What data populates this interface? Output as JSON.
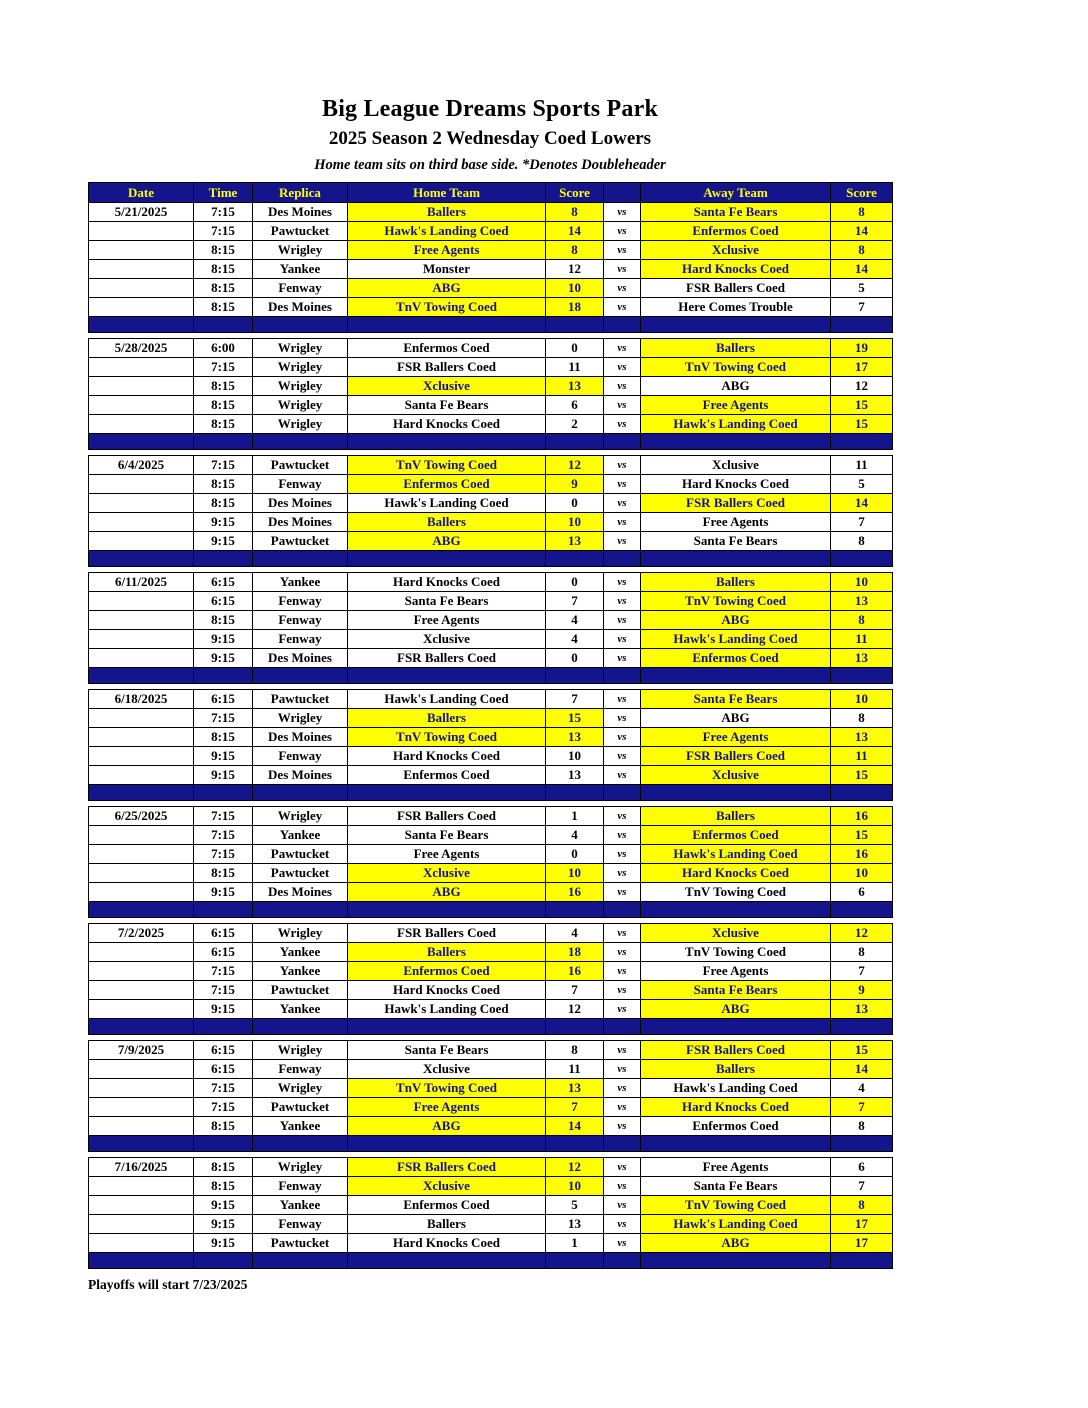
{
  "title": "Big League Dreams Sports Park",
  "subtitle": "2025 Season 2 Wednesday Coed Lowers",
  "note": "Home team sits on third base side.  *Denotes Doubleheader",
  "footer": "Playoffs will start 7/23/2025",
  "vs_label": "vs",
  "columns": [
    "Date",
    "Time",
    "Replica",
    "Home Team",
    "Score",
    "",
    "Away Team",
    "Score"
  ],
  "colors": {
    "header_bg": "#14148C",
    "header_text": "#FFFF00",
    "highlight_bg": "#FFFF00",
    "highlight_text": "#14148C",
    "separator_bg": "#14148C"
  },
  "groups": [
    {
      "date": "5/21/2025",
      "games": [
        {
          "time": "7:15",
          "replica": "Des Moines",
          "home": "Ballers",
          "home_score": "8",
          "away": "Santa Fe Bears",
          "away_score": "8",
          "home_win": true,
          "away_win": true
        },
        {
          "time": "7:15",
          "replica": "Pawtucket",
          "home": "Hawk's Landing Coed",
          "home_score": "14",
          "away": "Enfermos Coed",
          "away_score": "14",
          "home_win": true,
          "away_win": true
        },
        {
          "time": "8:15",
          "replica": "Wrigley",
          "home": "Free Agents",
          "home_score": "8",
          "away": "Xclusive",
          "away_score": "8",
          "home_win": true,
          "away_win": true
        },
        {
          "time": "8:15",
          "replica": "Yankee",
          "home": "Monster",
          "home_score": "12",
          "away": "Hard Knocks Coed",
          "away_score": "14",
          "home_win": false,
          "away_win": true
        },
        {
          "time": "8:15",
          "replica": "Fenway",
          "home": "ABG",
          "home_score": "10",
          "away": "FSR Ballers Coed",
          "away_score": "5",
          "home_win": true,
          "away_win": false
        },
        {
          "time": "8:15",
          "replica": "Des Moines",
          "home": "TnV Towing Coed",
          "home_score": "18",
          "away": "Here Comes Trouble",
          "away_score": "7",
          "home_win": true,
          "away_win": false
        }
      ]
    },
    {
      "date": "5/28/2025",
      "games": [
        {
          "time": "6:00",
          "replica": "Wrigley",
          "home": "Enfermos Coed",
          "home_score": "0",
          "away": "Ballers",
          "away_score": "19",
          "home_win": false,
          "away_win": true
        },
        {
          "time": "7:15",
          "replica": "Wrigley",
          "home": "FSR Ballers Coed",
          "home_score": "11",
          "away": "TnV Towing Coed",
          "away_score": "17",
          "home_win": false,
          "away_win": true
        },
        {
          "time": "8:15",
          "replica": "Wrigley",
          "home": "Xclusive",
          "home_score": "13",
          "away": "ABG",
          "away_score": "12",
          "home_win": true,
          "away_win": false
        },
        {
          "time": "8:15",
          "replica": "Wrigley",
          "home": "Santa Fe Bears",
          "home_score": "6",
          "away": "Free Agents",
          "away_score": "15",
          "home_win": false,
          "away_win": true
        },
        {
          "time": "8:15",
          "replica": "Wrigley",
          "home": "Hard Knocks Coed",
          "home_score": "2",
          "away": "Hawk's Landing Coed",
          "away_score": "15",
          "home_win": false,
          "away_win": true
        }
      ]
    },
    {
      "date": "6/4/2025",
      "games": [
        {
          "time": "7:15",
          "replica": "Pawtucket",
          "home": "TnV Towing Coed",
          "home_score": "12",
          "away": "Xclusive",
          "away_score": "11",
          "home_win": true,
          "away_win": false
        },
        {
          "time": "8:15",
          "replica": "Fenway",
          "home": "Enfermos Coed",
          "home_score": "9",
          "away": "Hard Knocks Coed",
          "away_score": "5",
          "home_win": true,
          "away_win": false
        },
        {
          "time": "8:15",
          "replica": "Des Moines",
          "home": "Hawk's Landing Coed",
          "home_score": "0",
          "away": "FSR Ballers Coed",
          "away_score": "14",
          "home_win": false,
          "away_win": true
        },
        {
          "time": "9:15",
          "replica": "Des Moines",
          "home": "Ballers",
          "home_score": "10",
          "away": "Free Agents",
          "away_score": "7",
          "home_win": true,
          "away_win": false
        },
        {
          "time": "9:15",
          "replica": "Pawtucket",
          "home": "ABG",
          "home_score": "13",
          "away": "Santa Fe Bears",
          "away_score": "8",
          "home_win": true,
          "away_win": false
        }
      ]
    },
    {
      "date": "6/11/2025",
      "games": [
        {
          "time": "6:15",
          "replica": "Yankee",
          "home": "Hard Knocks Coed",
          "home_score": "0",
          "away": "Ballers",
          "away_score": "10",
          "home_win": false,
          "away_win": true
        },
        {
          "time": "6:15",
          "replica": "Fenway",
          "home": "Santa Fe Bears",
          "home_score": "7",
          "away": "TnV Towing Coed",
          "away_score": "13",
          "home_win": false,
          "away_win": true
        },
        {
          "time": "8:15",
          "replica": "Fenway",
          "home": "Free Agents",
          "home_score": "4",
          "away": "ABG",
          "away_score": "8",
          "home_win": false,
          "away_win": true
        },
        {
          "time": "9:15",
          "replica": "Fenway",
          "home": "Xclusive",
          "home_score": "4",
          "away": "Hawk's Landing Coed",
          "away_score": "11",
          "home_win": false,
          "away_win": true
        },
        {
          "time": "9:15",
          "replica": "Des Moines",
          "home": "FSR Ballers Coed",
          "home_score": "0",
          "away": "Enfermos Coed",
          "away_score": "13",
          "home_win": false,
          "away_win": true
        }
      ]
    },
    {
      "date": "6/18/2025",
      "games": [
        {
          "time": "6:15",
          "replica": "Pawtucket",
          "home": "Hawk's Landing Coed",
          "home_score": "7",
          "away": "Santa Fe Bears",
          "away_score": "10",
          "home_win": false,
          "away_win": true
        },
        {
          "time": "7:15",
          "replica": "Wrigley",
          "home": "Ballers",
          "home_score": "15",
          "away": "ABG",
          "away_score": "8",
          "home_win": true,
          "away_win": false
        },
        {
          "time": "8:15",
          "replica": "Des Moines",
          "home": "TnV Towing Coed",
          "home_score": "13",
          "away": "Free Agents",
          "away_score": "13",
          "home_win": true,
          "away_win": true
        },
        {
          "time": "9:15",
          "replica": "Fenway",
          "home": "Hard Knocks Coed",
          "home_score": "10",
          "away": "FSR Ballers Coed",
          "away_score": "11",
          "home_win": false,
          "away_win": true
        },
        {
          "time": "9:15",
          "replica": "Des Moines",
          "home": "Enfermos Coed",
          "home_score": "13",
          "away": "Xclusive",
          "away_score": "15",
          "home_win": false,
          "away_win": true
        }
      ]
    },
    {
      "date": "6/25/2025",
      "games": [
        {
          "time": "7:15",
          "replica": "Wrigley",
          "home": "FSR Ballers Coed",
          "home_score": "1",
          "away": "Ballers",
          "away_score": "16",
          "home_win": false,
          "away_win": true
        },
        {
          "time": "7:15",
          "replica": "Yankee",
          "home": "Santa Fe Bears",
          "home_score": "4",
          "away": "Enfermos Coed",
          "away_score": "15",
          "home_win": false,
          "away_win": true
        },
        {
          "time": "7:15",
          "replica": "Pawtucket",
          "home": "Free Agents",
          "home_score": "0",
          "away": "Hawk's Landing Coed",
          "away_score": "16",
          "home_win": false,
          "away_win": true
        },
        {
          "time": "8:15",
          "replica": "Pawtucket",
          "home": "Xclusive",
          "home_score": "10",
          "away": "Hard Knocks Coed",
          "away_score": "10",
          "home_win": true,
          "away_win": true
        },
        {
          "time": "9:15",
          "replica": "Des Moines",
          "home": "ABG",
          "home_score": "16",
          "away": "TnV Towing Coed",
          "away_score": "6",
          "home_win": true,
          "away_win": false
        }
      ]
    },
    {
      "date": "7/2/2025",
      "games": [
        {
          "time": "6:15",
          "replica": "Wrigley",
          "home": "FSR Ballers Coed",
          "home_score": "4",
          "away": "Xclusive",
          "away_score": "12",
          "home_win": false,
          "away_win": true
        },
        {
          "time": "6:15",
          "replica": "Yankee",
          "home": "Ballers",
          "home_score": "18",
          "away": "TnV Towing Coed",
          "away_score": "8",
          "home_win": true,
          "away_win": false
        },
        {
          "time": "7:15",
          "replica": "Yankee",
          "home": "Enfermos Coed",
          "home_score": "16",
          "away": "Free Agents",
          "away_score": "7",
          "home_win": true,
          "away_win": false
        },
        {
          "time": "7:15",
          "replica": "Pawtucket",
          "home": "Hard Knocks Coed",
          "home_score": "7",
          "away": "Santa Fe Bears",
          "away_score": "9",
          "home_win": false,
          "away_win": true
        },
        {
          "time": "9:15",
          "replica": "Yankee",
          "home": "Hawk's Landing Coed",
          "home_score": "12",
          "away": "ABG",
          "away_score": "13",
          "home_win": false,
          "away_win": true
        }
      ]
    },
    {
      "date": "7/9/2025",
      "games": [
        {
          "time": "6:15",
          "replica": "Wrigley",
          "home": "Santa Fe Bears",
          "home_score": "8",
          "away": "FSR Ballers Coed",
          "away_score": "15",
          "home_win": false,
          "away_win": true
        },
        {
          "time": "6:15",
          "replica": "Fenway",
          "home": "Xclusive",
          "home_score": "11",
          "away": "Ballers",
          "away_score": "14",
          "home_win": false,
          "away_win": true
        },
        {
          "time": "7:15",
          "replica": "Wrigley",
          "home": "TnV Towing Coed",
          "home_score": "13",
          "away": "Hawk's Landing Coed",
          "away_score": "4",
          "home_win": true,
          "away_win": false
        },
        {
          "time": "7:15",
          "replica": "Pawtucket",
          "home": "Free Agents",
          "home_score": "7",
          "away": "Hard Knocks Coed",
          "away_score": "7",
          "home_win": true,
          "away_win": true
        },
        {
          "time": "8:15",
          "replica": "Yankee",
          "home": "ABG",
          "home_score": "14",
          "away": "Enfermos Coed",
          "away_score": "8",
          "home_win": true,
          "away_win": false
        }
      ]
    },
    {
      "date": "7/16/2025",
      "games": [
        {
          "time": "8:15",
          "replica": "Wrigley",
          "home": "FSR Ballers Coed",
          "home_score": "12",
          "away": "Free Agents",
          "away_score": "6",
          "home_win": true,
          "away_win": false
        },
        {
          "time": "8:15",
          "replica": "Fenway",
          "home": "Xclusive",
          "home_score": "10",
          "away": "Santa Fe Bears",
          "away_score": "7",
          "home_win": true,
          "away_win": false
        },
        {
          "time": "9:15",
          "replica": "Yankee",
          "home": "Enfermos Coed",
          "home_score": "5",
          "away": "TnV Towing Coed",
          "away_score": "8",
          "home_win": false,
          "away_win": true
        },
        {
          "time": "9:15",
          "replica": "Fenway",
          "home": "Ballers",
          "home_score": "13",
          "away": "Hawk's Landing Coed",
          "away_score": "17",
          "home_win": false,
          "away_win": true
        },
        {
          "time": "9:15",
          "replica": "Pawtucket",
          "home": "Hard Knocks Coed",
          "home_score": "1",
          "away": "ABG",
          "away_score": "17",
          "home_win": false,
          "away_win": true
        }
      ]
    }
  ]
}
